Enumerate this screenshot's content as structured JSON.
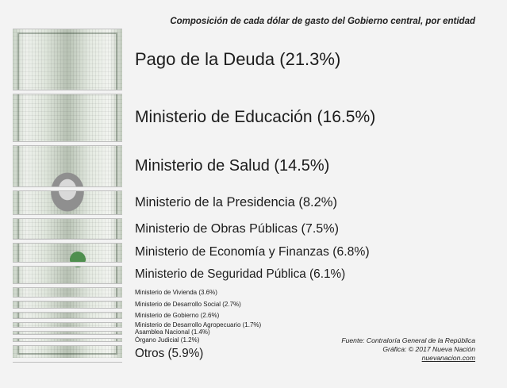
{
  "chart_data": {
    "type": "bar",
    "orientation": "horizontal-stacked-strips",
    "title": "Composición de cada dólar de gasto del Gobierno central, por entidad",
    "unit": "%",
    "categories": [
      "Pago de la Deuda",
      "Ministerio de Educación",
      "Ministerio de Salud",
      "Ministerio de la Presidencia",
      "Ministerio de Obras Públicas",
      "Ministerio de Economía y Finanzas",
      "Ministerio de Seguridad Pública",
      "Ministerio de Vivienda",
      "Ministerio de Desarrollo Social",
      "Ministerio de Gobierno",
      "Ministerio de Desarrollo Agropecuario",
      "Asamblea Nacional",
      "Órgano Judicial",
      "Otros"
    ],
    "values": [
      21.3,
      16.5,
      14.5,
      8.2,
      7.5,
      6.8,
      6.1,
      3.6,
      2.7,
      2.6,
      1.7,
      1.4,
      1.2,
      5.9
    ],
    "labels": [
      "Pago de la Deuda (21.3%)",
      "Ministerio de Educación (16.5%)",
      "Ministerio de Salud (14.5%)",
      "Ministerio de la Presidencia (8.2%)",
      "Ministerio de Obras Públicas (7.5%)",
      "Ministerio de Economía y Finanzas (6.8%)",
      "Ministerio de Seguridad Pública (6.1%)",
      "Ministerio de Vivienda (3.6%)",
      "Ministerio de Desarrollo Social (2.7%)",
      "Ministerio de Gobierno (2.6%)",
      "Ministerio de Desarrollo Agropecuario (1.7%)",
      "Asamblea Nacional (1.4%)",
      "Órgano Judicial (1.2%)",
      "Otros (5.9%)"
    ],
    "legend": "none",
    "grid": false
  },
  "footer": {
    "source": "Fuente: Contraloría General de la República",
    "credit": "Gráfica: © 2017 Nueva Nación",
    "url": "nuevanacion.com"
  },
  "colors": {
    "background": "#f3f3f3",
    "text": "#1c1c1c",
    "bill": "#dfe6dc"
  }
}
